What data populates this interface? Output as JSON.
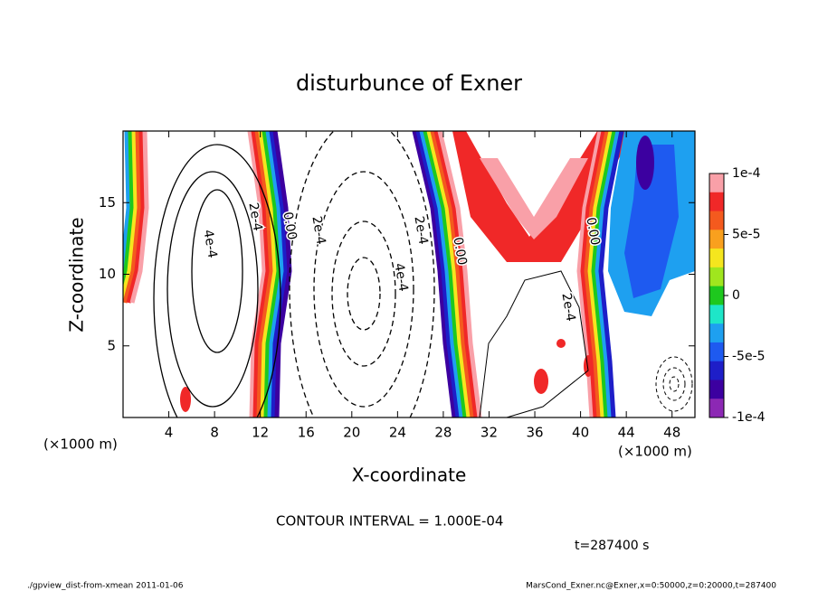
{
  "chart_data": {
    "type": "contour",
    "title": "disturbunce of Exner",
    "x_label": "X-coordinate",
    "y_label": "Z-coordinate",
    "x_unit": "(×1000 m)",
    "y_unit": "(×1000 m)",
    "xlim": [
      0,
      50
    ],
    "ylim": [
      0,
      20
    ],
    "xticks": [
      4,
      8,
      12,
      16,
      20,
      24,
      28,
      32,
      36,
      40,
      44,
      48
    ],
    "yticks": [
      5,
      10,
      15
    ],
    "colorbar": {
      "lim": [
        -0.0001,
        0.0001
      ],
      "ticks": [
        {
          "value": 0.0001,
          "label": "1e-4"
        },
        {
          "value": 5e-05,
          "label": "5e-5"
        },
        0,
        {
          "value": -5e-05,
          "label": "-5e-5"
        },
        {
          "value": -0.0001,
          "label": "-1e-4"
        }
      ],
      "colors": [
        "#f9a0a8",
        "#f02828",
        "#f45a1e",
        "#f9a01e",
        "#f5e61e",
        "#a0e61e",
        "#1ec81e",
        "#1ee6c8",
        "#1ea0f0",
        "#1e5af0",
        "#1e1ec8",
        "#3c00a0",
        "#8c28b4"
      ]
    },
    "contour_labels": [
      "2e-4",
      "0.00",
      "4e-4",
      "2e-4",
      "4e-4",
      "2e-4",
      "0.00",
      "2e-4",
      "0.00"
    ],
    "contour_interval": "CONTOUR INTERVAL = 1.000E-04",
    "time_label": "t=287400 s",
    "footer_left": "./gpview_dist-from-xmean  2011-01-06",
    "footer_right": "MarsCond_Exner.nc@Exner,x=0:50000,z=0:20000,t=287400"
  }
}
